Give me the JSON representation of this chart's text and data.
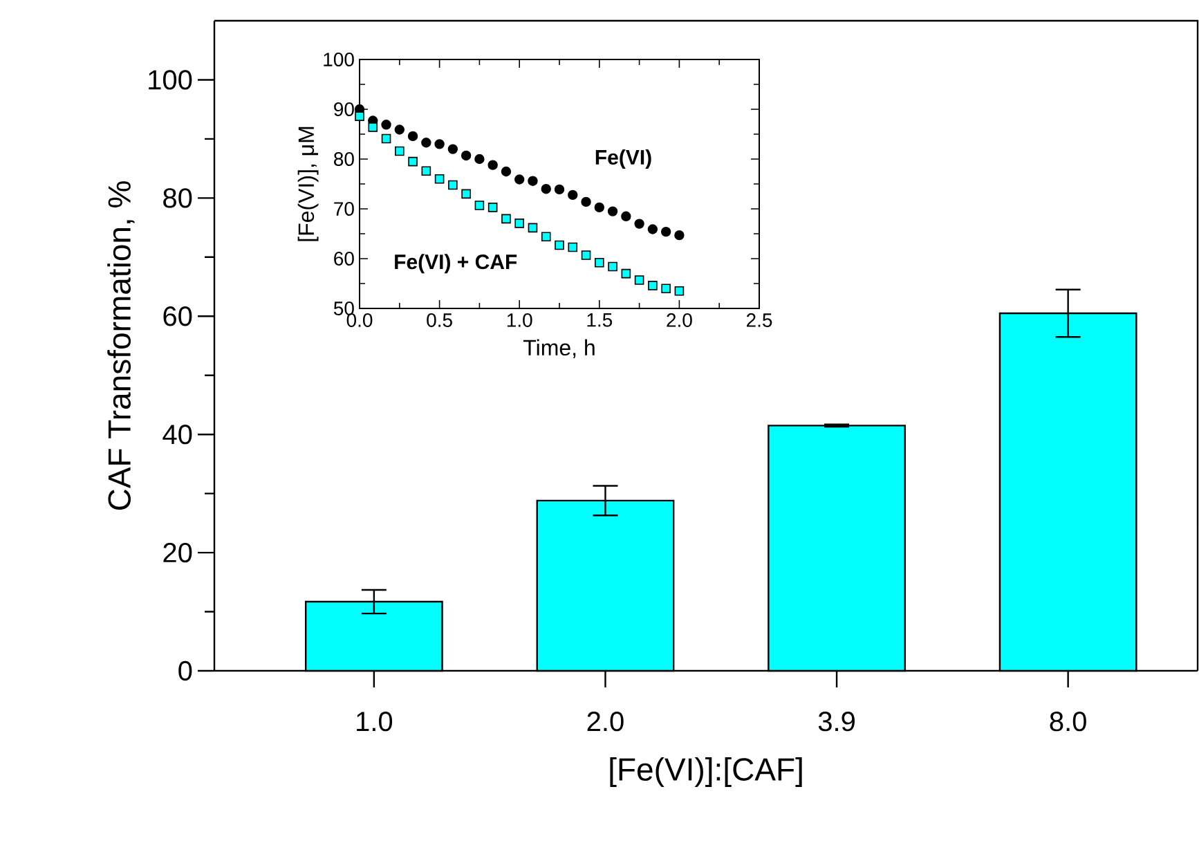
{
  "chart_data": [
    {
      "type": "bar",
      "categories": [
        "1.0",
        "2.0",
        "3.9",
        "8.0"
      ],
      "values": [
        11.7,
        28.8,
        41.5,
        60.5
      ],
      "errors": [
        2,
        2.5,
        0.2,
        4
      ],
      "color": "#00ffff",
      "xlabel": "[Fe(VI)]:[CAF]",
      "ylabel": "CAF Transformation, %",
      "ylim": [
        0,
        110
      ],
      "yticks": [
        0,
        20,
        40,
        60,
        80,
        100
      ],
      "grid": false
    },
    {
      "type": "scatter",
      "x": [
        0,
        0.0833,
        0.1667,
        0.25,
        0.3333,
        0.4167,
        0.5,
        0.5833,
        0.6667,
        0.75,
        0.8333,
        0.9167,
        1.0,
        1.0833,
        1.1667,
        1.25,
        1.3333,
        1.4167,
        1.5,
        1.5833,
        1.6667,
        1.75,
        1.8333,
        1.9167,
        2.0
      ],
      "series": [
        {
          "name": "Fe(VI)",
          "color": "#000000",
          "marker": "circle",
          "values": [
            90,
            87.7,
            86.9,
            85.9,
            84.6,
            83.3,
            83,
            82,
            80.7,
            80,
            78.8,
            77.5,
            75.9,
            75.6,
            74,
            73.9,
            72.8,
            71.4,
            70.3,
            69.5,
            68.5,
            67,
            65.9,
            65.4,
            64.7
          ]
        },
        {
          "name": "Fe(VI) + CAF",
          "color": "#00ffff",
          "marker": "square",
          "values": [
            88.6,
            86.4,
            84.1,
            81.6,
            79.5,
            77.6,
            76,
            74.8,
            73,
            70.7,
            70.3,
            68,
            67.1,
            66.2,
            64.4,
            62.7,
            62.3,
            60.7,
            59.2,
            58.4,
            57,
            55.7,
            54.6,
            54,
            53.5
          ]
        }
      ],
      "xlabel": "Time, h",
      "ylabel": "[Fe(VI)], μM",
      "xlim": [
        0,
        2.5
      ],
      "ylim": [
        50,
        100
      ],
      "xticks": [
        {
          "value": 0,
          "label": "0.0"
        },
        {
          "value": 0.5,
          "label": "0.5"
        },
        {
          "value": 1,
          "label": "1.0"
        },
        {
          "value": 1.5,
          "label": "1.5"
        },
        {
          "value": 2,
          "label": "2.0"
        },
        {
          "value": 2.5,
          "label": "2.5"
        }
      ],
      "yticks": [
        50,
        60,
        70,
        80,
        90,
        100
      ],
      "grid": false
    }
  ]
}
